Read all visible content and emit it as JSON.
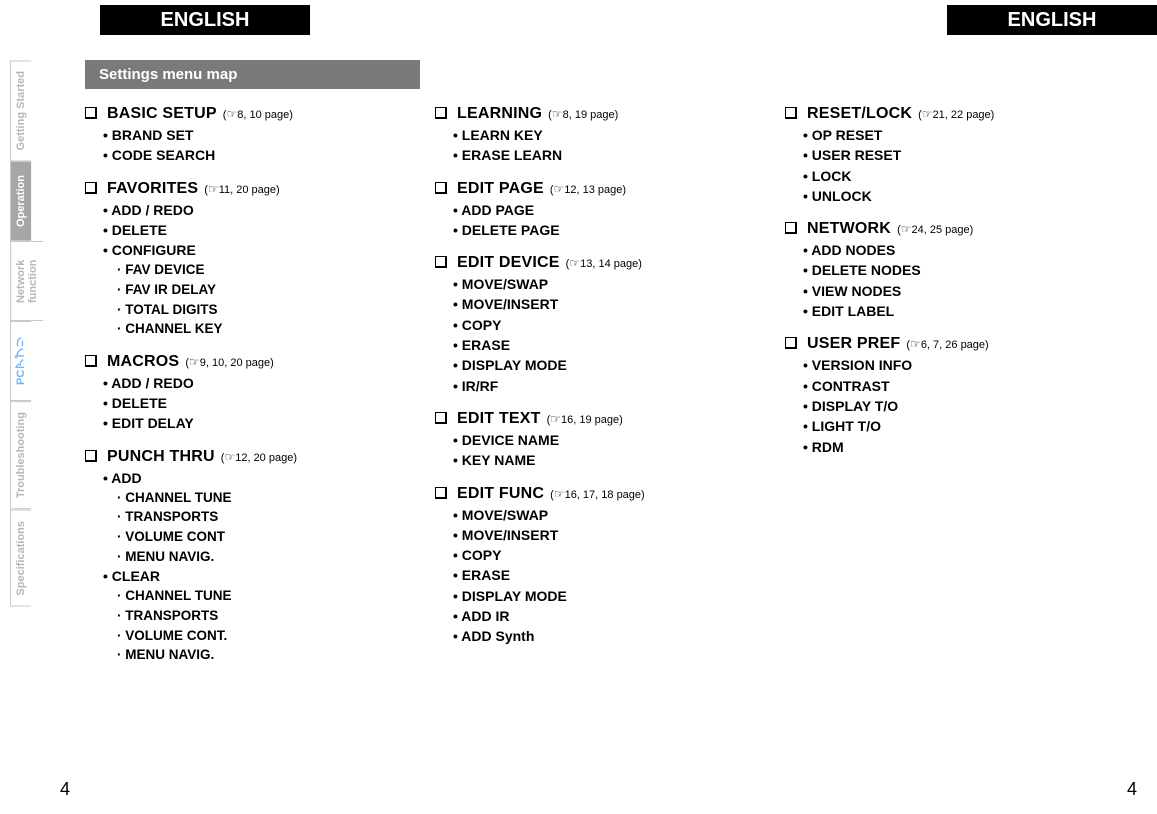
{
  "header": {
    "left": "ENGLISH",
    "right": "ENGLISH"
  },
  "title_bar": "Settings menu map",
  "page_number_left": "4",
  "page_number_right": "4",
  "colors": {
    "header_bg": "#000000",
    "header_fg": "#ffffff",
    "titlebar_bg": "#7a7a7a",
    "titlebar_fg": "#ffffff",
    "tab_inactive_fg": "#b7b7b7",
    "tab_active_bg": "#a6a6a6",
    "tab_pc_fg": "#6fb6ff",
    "body_fg": "#000000"
  },
  "side_tabs": [
    {
      "label": "Getting Started",
      "active": false
    },
    {
      "label": "Operation",
      "active": true
    },
    {
      "label": "Network\nfunction",
      "active": false
    },
    {
      "label": "PCアプリ",
      "active": false,
      "pc": true
    },
    {
      "label": "Troubleshooting",
      "active": false
    },
    {
      "label": "Specifications",
      "active": false
    }
  ],
  "columns": [
    [
      {
        "title": "BASIC SETUP",
        "page_ref": "8, 10 page",
        "items": [
          {
            "label": "BRAND SET"
          },
          {
            "label": "CODE SEARCH"
          }
        ]
      },
      {
        "title": "FAVORITES",
        "page_ref": "11, 20 page",
        "items": [
          {
            "label": "ADD / REDO"
          },
          {
            "label": "DELETE"
          },
          {
            "label": "CONFIGURE",
            "sub": [
              "FAV DEVICE",
              "FAV IR DELAY",
              "TOTAL DIGITS",
              "CHANNEL KEY"
            ]
          }
        ]
      },
      {
        "title": "MACROS",
        "page_ref": "9, 10, 20 page",
        "items": [
          {
            "label": "ADD / REDO"
          },
          {
            "label": "DELETE"
          },
          {
            "label": "EDIT DELAY"
          }
        ]
      },
      {
        "title": "PUNCH THRU",
        "page_ref": "12, 20 page",
        "items": [
          {
            "label": "ADD",
            "sub": [
              "CHANNEL TUNE",
              "TRANSPORTS",
              "VOLUME CONT",
              "MENU NAVIG."
            ]
          },
          {
            "label": "CLEAR",
            "sub": [
              "CHANNEL TUNE",
              "TRANSPORTS",
              "VOLUME CONT.",
              "MENU NAVIG."
            ]
          }
        ]
      }
    ],
    [
      {
        "title": "LEARNING",
        "page_ref": "8, 19 page",
        "items": [
          {
            "label": "LEARN KEY"
          },
          {
            "label": "ERASE LEARN"
          }
        ]
      },
      {
        "title": "EDIT PAGE",
        "page_ref": "12, 13 page",
        "items": [
          {
            "label": "ADD PAGE"
          },
          {
            "label": "DELETE PAGE"
          }
        ]
      },
      {
        "title": "EDIT DEVICE",
        "page_ref": "13, 14 page",
        "items": [
          {
            "label": "MOVE/SWAP"
          },
          {
            "label": "MOVE/INSERT"
          },
          {
            "label": "COPY"
          },
          {
            "label": "ERASE"
          },
          {
            "label": "DISPLAY MODE"
          },
          {
            "label": "IR/RF"
          }
        ]
      },
      {
        "title": "EDIT TEXT",
        "page_ref": "16, 19 page",
        "items": [
          {
            "label": "DEVICE NAME"
          },
          {
            "label": "KEY NAME"
          }
        ]
      },
      {
        "title": "EDIT FUNC",
        "page_ref": "16, 17, 18 page",
        "items": [
          {
            "label": "MOVE/SWAP"
          },
          {
            "label": "MOVE/INSERT"
          },
          {
            "label": "COPY"
          },
          {
            "label": "ERASE"
          },
          {
            "label": "DISPLAY MODE"
          },
          {
            "label": "ADD IR"
          },
          {
            "label": "ADD Synth"
          }
        ]
      }
    ],
    [
      {
        "title": "RESET/LOCK",
        "page_ref": "21, 22 page",
        "items": [
          {
            "label": "OP RESET"
          },
          {
            "label": "USER RESET"
          },
          {
            "label": "LOCK"
          },
          {
            "label": "UNLOCK"
          }
        ]
      },
      {
        "title": "NETWORK",
        "page_ref": "24, 25 page",
        "items": [
          {
            "label": "ADD NODES"
          },
          {
            "label": "DELETE NODES"
          },
          {
            "label": "VIEW NODES"
          },
          {
            "label": "EDIT LABEL"
          }
        ]
      },
      {
        "title": "USER PREF",
        "page_ref": "6, 7, 26 page",
        "items": [
          {
            "label": "VERSION INFO"
          },
          {
            "label": "CONTRAST"
          },
          {
            "label": "DISPLAY T/O"
          },
          {
            "label": "LIGHT T/O"
          },
          {
            "label": "RDM"
          }
        ]
      }
    ]
  ]
}
